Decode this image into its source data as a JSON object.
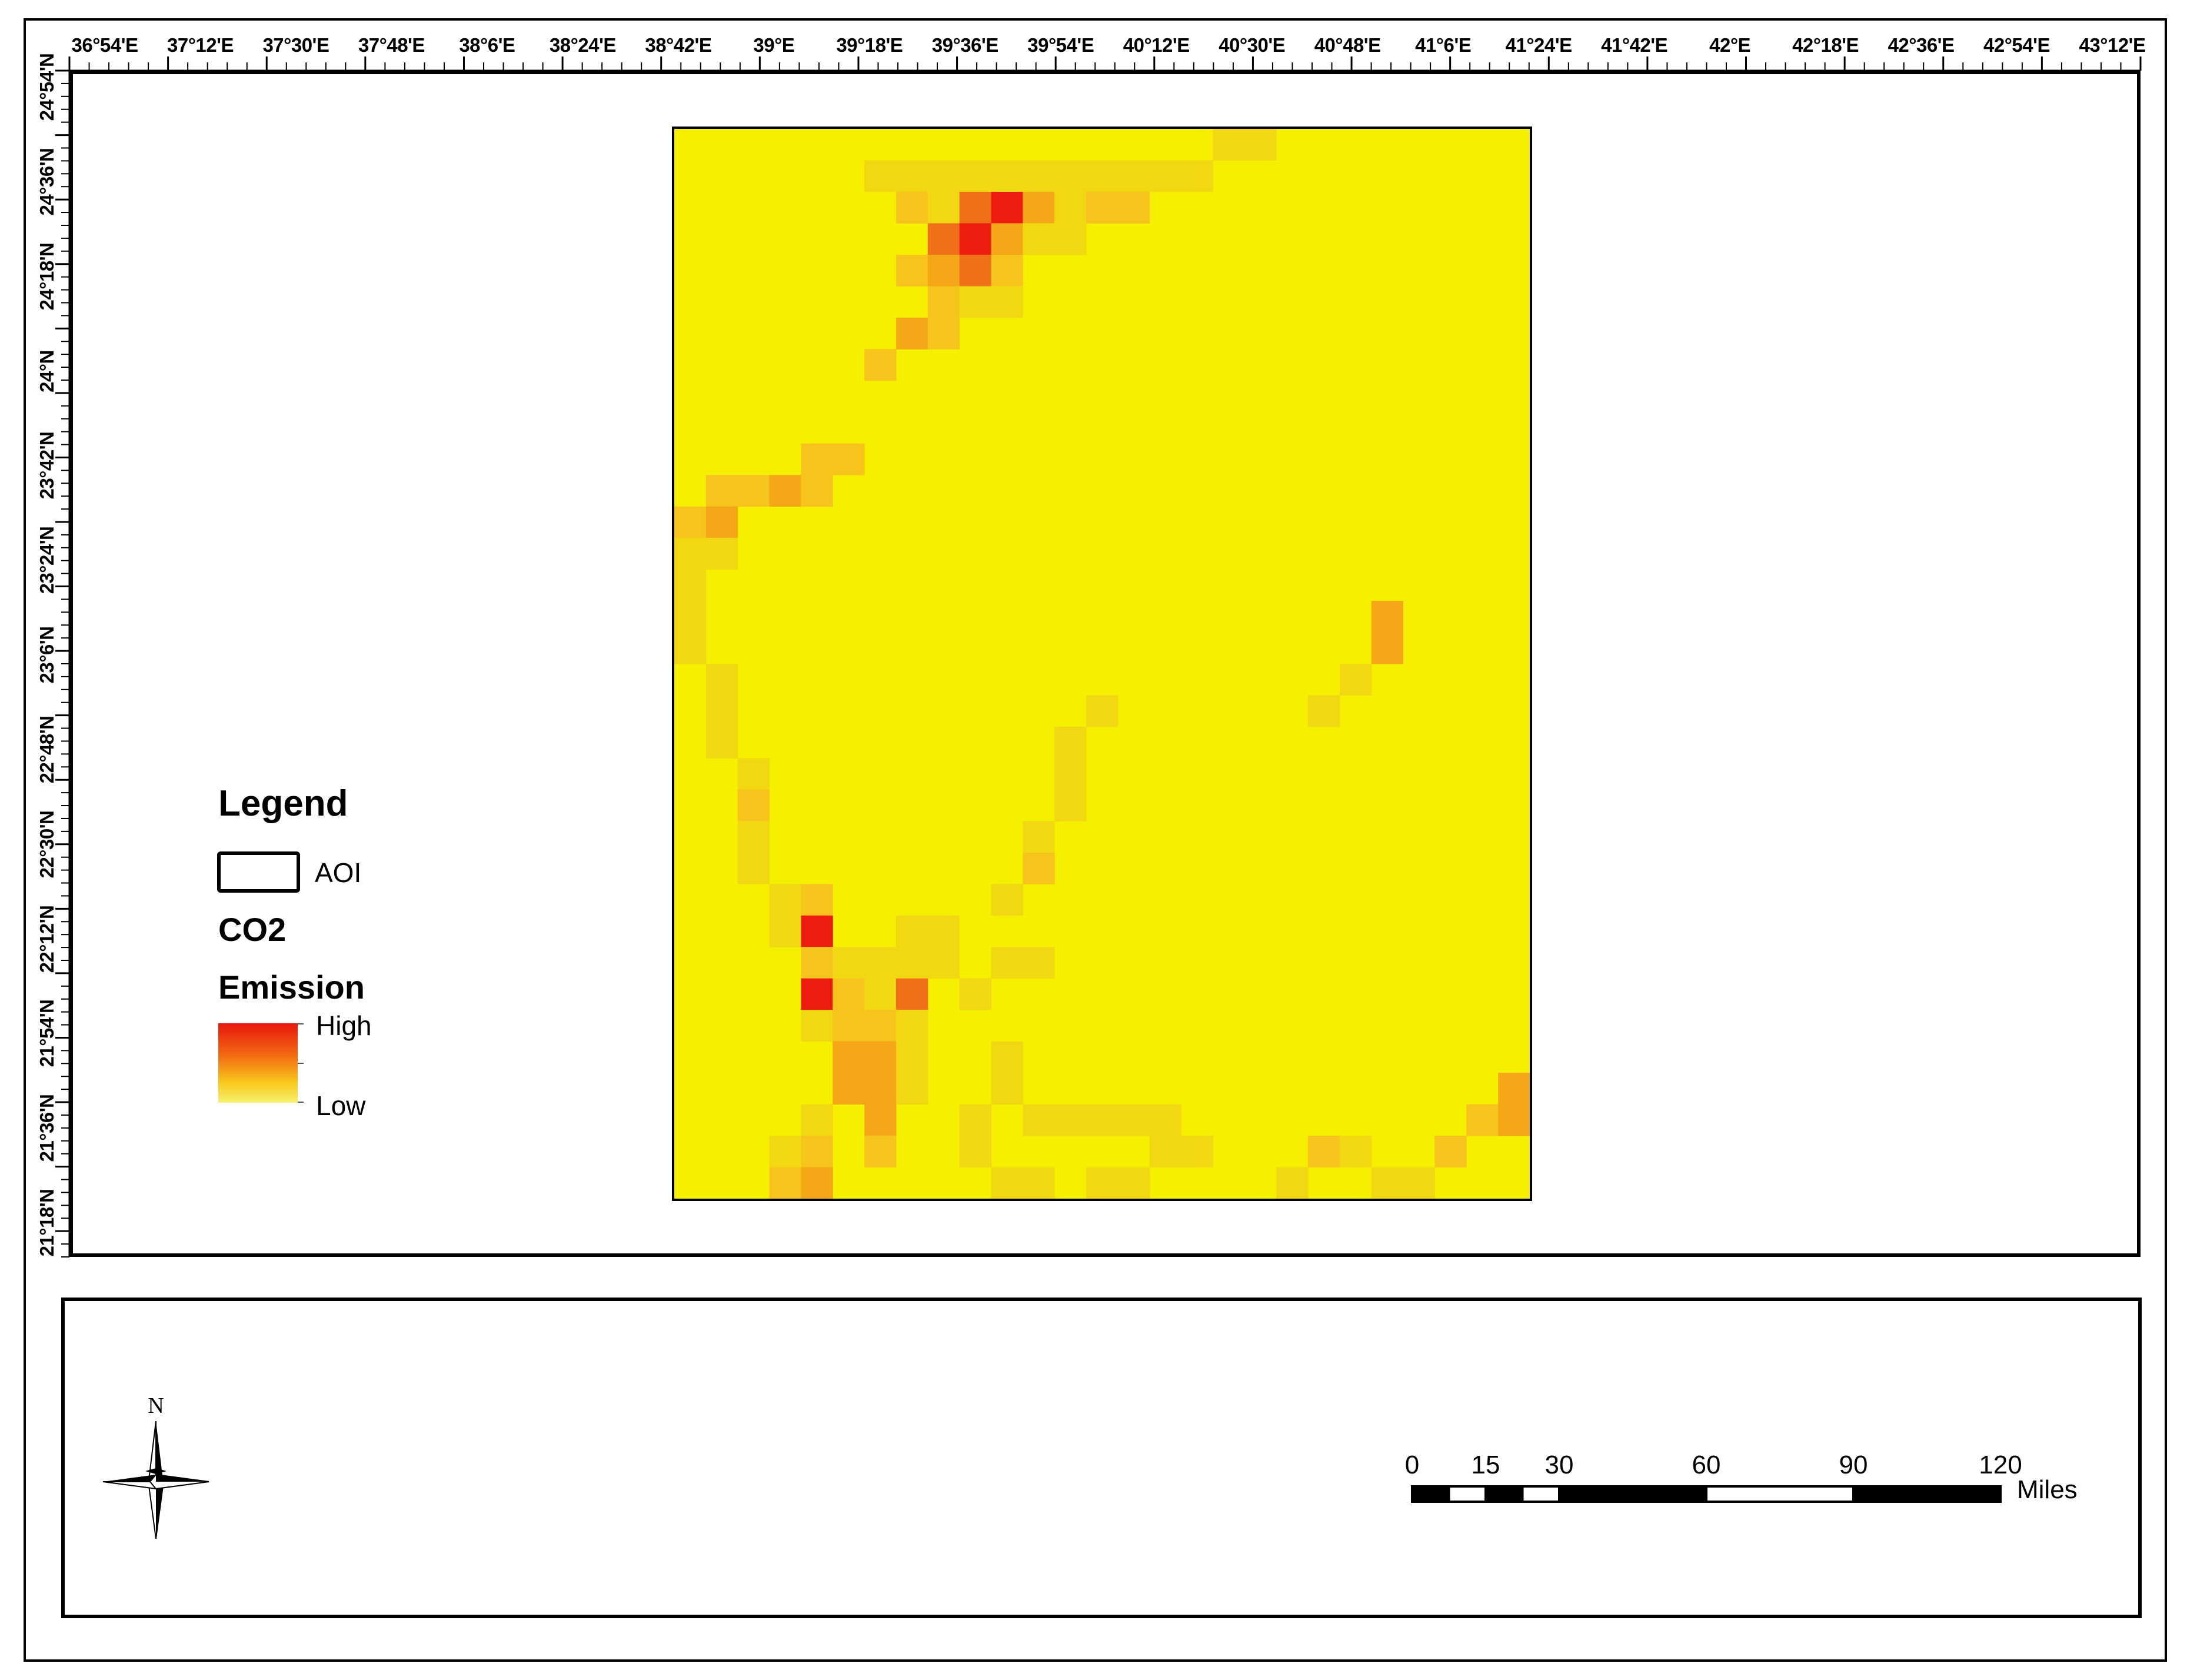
{
  "map": {
    "longitude_labels": [
      "36°54'E",
      "37°12'E",
      "37°30'E",
      "37°48'E",
      "38°6'E",
      "38°24'E",
      "38°42'E",
      "39°E",
      "39°18'E",
      "39°36'E",
      "39°54'E",
      "40°12'E",
      "40°30'E",
      "40°48'E",
      "41°6'E",
      "41°24'E",
      "41°42'E",
      "42°E",
      "42°18'E",
      "42°36'E",
      "42°54'E",
      "43°12'E"
    ],
    "latitude_labels": [
      "24°54'N",
      "24°36'N",
      "24°18'N",
      "24°N",
      "23°42'N",
      "23°24'N",
      "23°6'N",
      "22°48'N",
      "22°30'N",
      "22°12'N",
      "21°54'N",
      "21°36'N",
      "21°18'N"
    ],
    "raster": {
      "rows": 34,
      "cols": 27,
      "background": "#f4f000",
      "palette": {
        "r": "#ec1c0e",
        "o": "#f0701a",
        "a": "#f4a818",
        "y": "#f6c41c",
        "l": "#f2d812",
        "b": "#f4f000"
      },
      "cells": [
        "bbbbbbbbbbbbbbbbbbbbbbbbbbb",
        "bbbbbblllllllllbbbbbbbbbbbb",
        "bbbbbbbylrrayllbbbbbbbbbbbb",
        "bbbbbbbborrylbbbbbbbbbbbbbb",
        "bbbbbbbbyalbbbbbbbbbbbbbbbb",
        "bbbbbbbbyllbbbbbbbbbbbbbbbb",
        "bbbbbbbbybbbbbbbbbbbbbbbbbb",
        "bbbbbbbbbbbbbbbbbbbbbbbbbbb",
        "bbbbbbbbbbbbbbbbbbbbbbbbbbb",
        "bbbbbbbbbbbbbbbbbbbbbbbbbbb",
        "bbbbbbbbbbbbbbbbbbbbbbbbbbb",
        "bbbbbbbbbbbbbbbbbbbbbbbbbbb",
        "bbbbbbbbbbbbbbbbbbbbbbbbbbb",
        "bbbbbbbbbbbbbbbbbbbbbbbbbbb",
        "bbbbbbbbbbbbbbbbbbbbbbbbbbb",
        "bbbbbbbbbbbbbbbbbbbbbbbbbbb",
        "bbbbbbbbbbbbbbbbbbbbbbbbbbb",
        "bbbbbbbbbbbbbbbbbbbbbbbbbbb",
        "bbbbbbbbbbbbbbbbbbbbbbbbbbb",
        "bbbbbbbbbbbbbbbbbbbbbbbbbbb",
        "bbbbbbbbbbbbbbbbbbbbbbbbbbb",
        "bbbbbbbbbbbbbbbbbbbbbbbbbbb",
        "bbbbbbbbbbbbbbbbbbbbbbbbbbb",
        "bbbbbbbbbbbbbbbbbbbbbbbbbbb",
        "bbbbbbbbbbbbbbbbbbbbbbbbbbb",
        "bbbbbbbbbbbbbbbbbbbbbbbbbbb",
        "bbbbbbbbbbbbbbbbbbbbbbbbbbb",
        "bbbbbbbbbbbbbbbbbbbbbbbbbbb",
        "bbbbbbbbbbbbbbbbbbbbbbbbbbb",
        "bbbbbbbbbbbbbbbbbbbbbbbbbbb",
        "bbbbbbbbbbbbbbbbbbbbbbbbbbb",
        "bbbbbbbbbbbbbbbbbbbbbbbbbbb",
        "bbbbbbbbbbbbbbbbbbbbbbbbbbb",
        "bbbbbbbbbbbbbbbbbbbbbbbbbbb"
      ],
      "overrides": [
        [
          3,
          9,
          "r"
        ],
        [
          2,
          9,
          "o"
        ],
        [
          3,
          8,
          "o"
        ],
        [
          3,
          10,
          "a"
        ],
        [
          3,
          11,
          "l"
        ],
        [
          2,
          11,
          "a"
        ],
        [
          2,
          12,
          "l"
        ],
        [
          2,
          13,
          "y"
        ],
        [
          2,
          14,
          "y"
        ],
        [
          1,
          15,
          "l"
        ],
        [
          1,
          16,
          "l"
        ],
        [
          0,
          17,
          "l"
        ],
        [
          0,
          18,
          "l"
        ],
        [
          4,
          7,
          "y"
        ],
        [
          4,
          8,
          "a"
        ],
        [
          4,
          9,
          "o"
        ],
        [
          4,
          10,
          "y"
        ],
        [
          6,
          7,
          "a"
        ],
        [
          7,
          6,
          "y"
        ],
        [
          10,
          4,
          "y"
        ],
        [
          10,
          5,
          "y"
        ],
        [
          11,
          4,
          "y"
        ],
        [
          11,
          3,
          "a"
        ],
        [
          11,
          2,
          "y"
        ],
        [
          11,
          1,
          "y"
        ],
        [
          12,
          0,
          "y"
        ],
        [
          12,
          1,
          "a"
        ],
        [
          13,
          0,
          "l"
        ],
        [
          13,
          1,
          "l"
        ],
        [
          14,
          0,
          "l"
        ],
        [
          15,
          0,
          "l"
        ],
        [
          16,
          0,
          "l"
        ],
        [
          17,
          1,
          "l"
        ],
        [
          18,
          1,
          "l"
        ],
        [
          19,
          1,
          "l"
        ],
        [
          20,
          2,
          "l"
        ],
        [
          21,
          2,
          "y"
        ],
        [
          22,
          2,
          "l"
        ],
        [
          23,
          2,
          "l"
        ],
        [
          24,
          3,
          "l"
        ],
        [
          25,
          3,
          "l"
        ],
        [
          26,
          4,
          "y"
        ],
        [
          27,
          4,
          "l"
        ],
        [
          28,
          4,
          "l"
        ],
        [
          15,
          22,
          "a"
        ],
        [
          16,
          22,
          "a"
        ],
        [
          17,
          21,
          "l"
        ],
        [
          18,
          20,
          "l"
        ],
        [
          18,
          13,
          "l"
        ],
        [
          19,
          12,
          "l"
        ],
        [
          20,
          12,
          "l"
        ],
        [
          21,
          12,
          "l"
        ],
        [
          22,
          11,
          "l"
        ],
        [
          23,
          11,
          "y"
        ],
        [
          24,
          10,
          "l"
        ],
        [
          26,
          10,
          "l"
        ],
        [
          26,
          11,
          "l"
        ],
        [
          27,
          9,
          "l"
        ],
        [
          24,
          4,
          "y"
        ],
        [
          25,
          4,
          "r"
        ],
        [
          27,
          4,
          "r"
        ],
        [
          26,
          5,
          "l"
        ],
        [
          27,
          5,
          "y"
        ],
        [
          27,
          7,
          "o"
        ],
        [
          28,
          5,
          "y"
        ],
        [
          29,
          5,
          "a"
        ],
        [
          30,
          5,
          "a"
        ],
        [
          31,
          6,
          "a"
        ],
        [
          32,
          6,
          "y"
        ],
        [
          31,
          4,
          "l"
        ],
        [
          32,
          3,
          "l"
        ],
        [
          29,
          10,
          "l"
        ],
        [
          30,
          10,
          "l"
        ],
        [
          31,
          13,
          "l"
        ],
        [
          31,
          14,
          "l"
        ],
        [
          32,
          20,
          "y"
        ],
        [
          32,
          21,
          "l"
        ],
        [
          33,
          19,
          "l"
        ],
        [
          30,
          26,
          "a"
        ],
        [
          31,
          26,
          "a"
        ],
        [
          31,
          25,
          "y"
        ],
        [
          32,
          24,
          "y"
        ],
        [
          33,
          23,
          "l"
        ],
        [
          33,
          22,
          "l"
        ],
        [
          32,
          15,
          "l"
        ],
        [
          32,
          16,
          "l"
        ],
        [
          33,
          13,
          "l"
        ],
        [
          33,
          14,
          "l"
        ],
        [
          31,
          15,
          "l"
        ],
        [
          32,
          4,
          "y"
        ],
        [
          33,
          3,
          "y"
        ],
        [
          33,
          4,
          "a"
        ],
        [
          30,
          6,
          "a"
        ],
        [
          29,
          6,
          "a"
        ],
        [
          30,
          7,
          "l"
        ],
        [
          29,
          7,
          "l"
        ],
        [
          28,
          6,
          "y"
        ],
        [
          28,
          7,
          "l"
        ],
        [
          27,
          6,
          "l"
        ],
        [
          26,
          6,
          "l"
        ],
        [
          26,
          7,
          "l"
        ],
        [
          26,
          8,
          "l"
        ],
        [
          25,
          7,
          "l"
        ],
        [
          25,
          8,
          "l"
        ],
        [
          31,
          9,
          "l"
        ],
        [
          32,
          9,
          "l"
        ],
        [
          33,
          10,
          "l"
        ],
        [
          33,
          11,
          "l"
        ],
        [
          31,
          11,
          "l"
        ],
        [
          31,
          12,
          "l"
        ]
      ]
    }
  },
  "legend": {
    "title": "Legend",
    "aoi_label": "AOI",
    "co2_line1": "CO2",
    "co2_line2": "Emission",
    "high_label": "High",
    "low_label": "Low",
    "ramp_colors": [
      "#e8160d",
      "#f26a12",
      "#f8c91c",
      "#f6f070"
    ]
  },
  "north_arrow": {
    "label": "N"
  },
  "scale_bar": {
    "ticks": [
      "0",
      "15",
      "30",
      "60",
      "90",
      "120"
    ],
    "tick_values": [
      0,
      15,
      30,
      60,
      90,
      120
    ],
    "units": "Miles"
  }
}
